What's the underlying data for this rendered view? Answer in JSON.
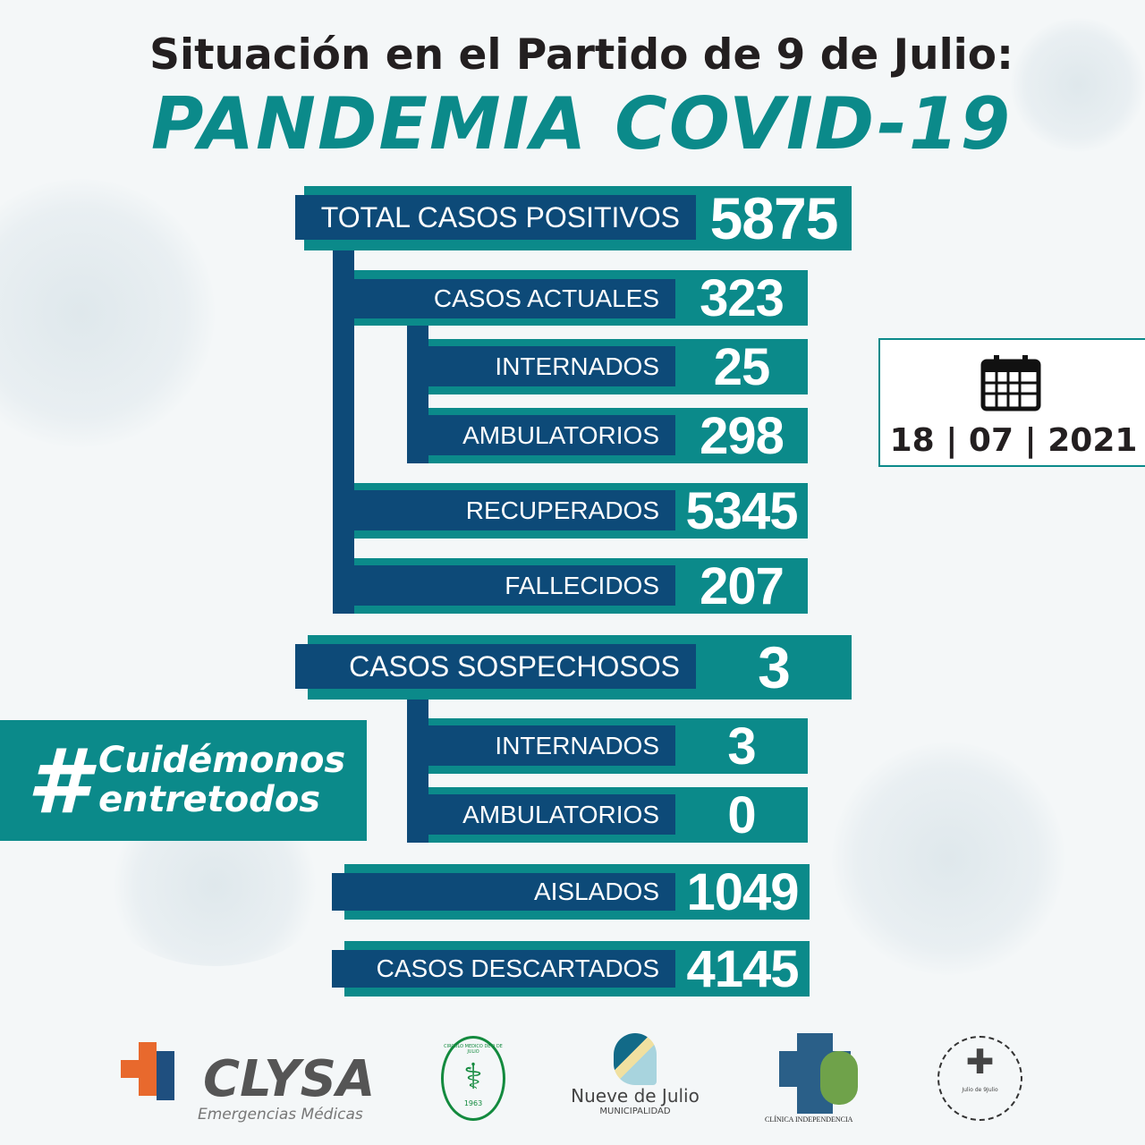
{
  "title_line1": "Situación en el Partido de 9 de Julio:",
  "title_line2": "PANDEMIA COVID-19",
  "colors": {
    "teal": "#0b8a8a",
    "navy": "#0d4a78",
    "title": "#231f20"
  },
  "stats": {
    "total": {
      "label": "TOTAL CASOS POSITIVOS",
      "value": "5875"
    },
    "actuales": {
      "label": "CASOS ACTUALES",
      "value": "323"
    },
    "internados": {
      "label": "INTERNADOS",
      "value": "25"
    },
    "ambulatorios": {
      "label": "AMBULATORIOS",
      "value": "298"
    },
    "recuperados": {
      "label": "RECUPERADOS",
      "value": "5345"
    },
    "fallecidos": {
      "label": "FALLECIDOS",
      "value": "207"
    },
    "sospechosos": {
      "label": "CASOS SOSPECHOSOS",
      "value": "3"
    },
    "sosp_internados": {
      "label": "INTERNADOS",
      "value": "3"
    },
    "sosp_ambulatorios": {
      "label": "AMBULATORIOS",
      "value": "0"
    },
    "aislados": {
      "label": "AISLADOS",
      "value": "1049"
    },
    "descartados": {
      "label": "CASOS DESCARTADOS",
      "value": "4145"
    }
  },
  "date": {
    "day": "18",
    "month": "07",
    "year": "2021",
    "icon": "calendar-icon"
  },
  "hashtag": {
    "symbol": "#",
    "line1": "Cuidémonos",
    "line2": "entretodos"
  },
  "logos": {
    "clysa": {
      "name": "CLYSA",
      "tagline": "Emergencias Médicas"
    },
    "circulo_medico": {
      "text": "CIRCULO MEDICO DE 9 DE JULIO",
      "year": "1963"
    },
    "municipalidad": {
      "name": "Nueve de Julio",
      "sub": "MUNICIPALIDAD"
    },
    "clinica": {
      "name": "CLÍNICA INDEPENDENCIA"
    },
    "hospital": {
      "text": "Julio de 9Julio"
    }
  }
}
